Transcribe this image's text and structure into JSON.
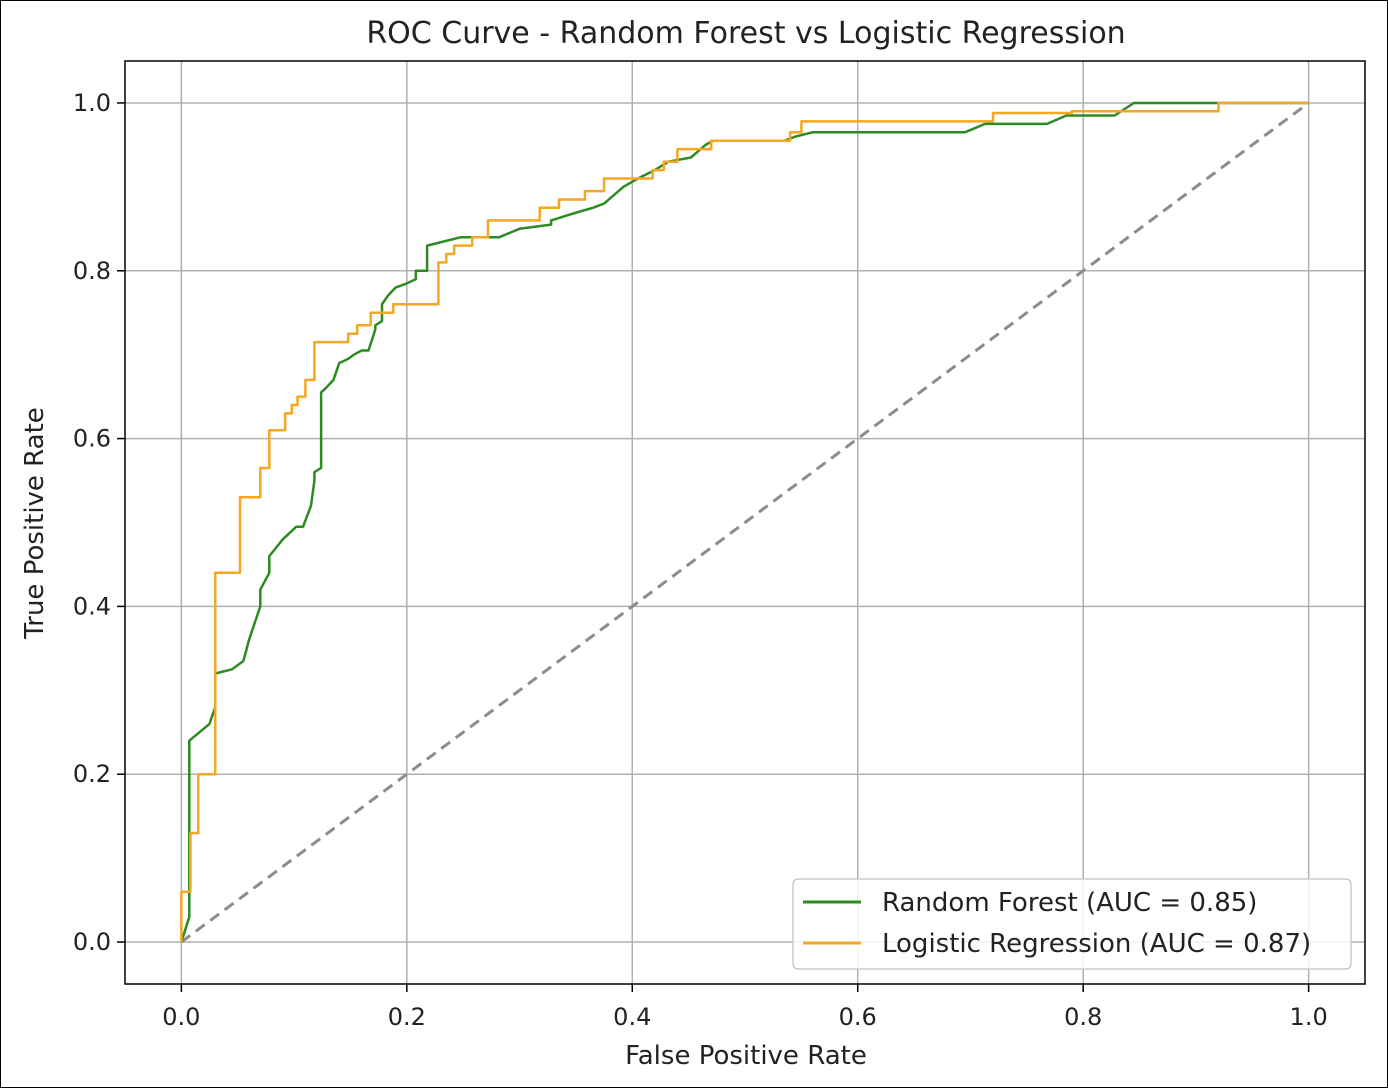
{
  "chart_data": {
    "type": "line",
    "title": "ROC Curve - Random Forest vs Logistic Regression",
    "xlabel": "False Positive Rate",
    "ylabel": "True Positive Rate",
    "xlim": [
      -0.05,
      1.05
    ],
    "ylim": [
      -0.05,
      1.05
    ],
    "xticks": [
      "0.0",
      "0.2",
      "0.4",
      "0.6",
      "0.8",
      "1.0"
    ],
    "yticks": [
      "0.0",
      "0.2",
      "0.4",
      "0.6",
      "0.8",
      "1.0"
    ],
    "grid": true,
    "legend_position": "bottom-right",
    "diagonal": {
      "x": [
        0,
        1
      ],
      "y": [
        0,
        1
      ],
      "color": "#8c8c8c",
      "style": "dashed"
    },
    "series": [
      {
        "name": "Random Forest (AUC = 0.85)",
        "color": "#2e8b22",
        "x": [
          0.0,
          0.007,
          0.007,
          0.025,
          0.03,
          0.03,
          0.045,
          0.055,
          0.06,
          0.065,
          0.07,
          0.07,
          0.078,
          0.078,
          0.09,
          0.102,
          0.108,
          0.115,
          0.118,
          0.118,
          0.124,
          0.124,
          0.128,
          0.135,
          0.14,
          0.148,
          0.153,
          0.16,
          0.166,
          0.172,
          0.172,
          0.178,
          0.178,
          0.183,
          0.19,
          0.2,
          0.208,
          0.208,
          0.218,
          0.218,
          0.248,
          0.268,
          0.282,
          0.3,
          0.328,
          0.328,
          0.34,
          0.352,
          0.365,
          0.375,
          0.392,
          0.405,
          0.42,
          0.432,
          0.452,
          0.465,
          0.472,
          0.535,
          0.545,
          0.56,
          0.635,
          0.695,
          0.713,
          0.735,
          0.768,
          0.785,
          0.828,
          0.845,
          0.87,
          1.0
        ],
        "y": [
          0.0,
          0.03,
          0.24,
          0.26,
          0.28,
          0.32,
          0.325,
          0.335,
          0.36,
          0.38,
          0.4,
          0.42,
          0.44,
          0.46,
          0.48,
          0.495,
          0.495,
          0.52,
          0.55,
          0.56,
          0.565,
          0.655,
          0.66,
          0.67,
          0.69,
          0.695,
          0.7,
          0.705,
          0.705,
          0.73,
          0.735,
          0.74,
          0.76,
          0.77,
          0.78,
          0.785,
          0.79,
          0.8,
          0.8,
          0.83,
          0.84,
          0.84,
          0.84,
          0.85,
          0.855,
          0.86,
          0.865,
          0.87,
          0.875,
          0.88,
          0.9,
          0.91,
          0.92,
          0.93,
          0.935,
          0.95,
          0.955,
          0.955,
          0.96,
          0.965,
          0.965,
          0.965,
          0.975,
          0.975,
          0.975,
          0.985,
          0.985,
          1.0,
          1.0,
          1.0
        ]
      },
      {
        "name": "Logistic Regression (AUC = 0.87)",
        "color": "#f5a623",
        "x": [
          0.0,
          0.0,
          0.008,
          0.008,
          0.015,
          0.015,
          0.03,
          0.03,
          0.052,
          0.052,
          0.07,
          0.07,
          0.078,
          0.078,
          0.092,
          0.092,
          0.098,
          0.098,
          0.103,
          0.103,
          0.11,
          0.11,
          0.118,
          0.118,
          0.148,
          0.148,
          0.156,
          0.156,
          0.168,
          0.168,
          0.188,
          0.188,
          0.228,
          0.228,
          0.235,
          0.235,
          0.242,
          0.242,
          0.258,
          0.258,
          0.272,
          0.272,
          0.318,
          0.318,
          0.335,
          0.335,
          0.358,
          0.358,
          0.375,
          0.375,
          0.418,
          0.418,
          0.428,
          0.428,
          0.44,
          0.44,
          0.47,
          0.47,
          0.54,
          0.54,
          0.55,
          0.55,
          0.72,
          0.72,
          0.79,
          0.79,
          0.92,
          0.92,
          1.0
        ],
        "y": [
          0.0,
          0.06,
          0.06,
          0.13,
          0.13,
          0.2,
          0.2,
          0.44,
          0.44,
          0.53,
          0.53,
          0.565,
          0.565,
          0.61,
          0.61,
          0.63,
          0.63,
          0.64,
          0.64,
          0.65,
          0.65,
          0.67,
          0.67,
          0.715,
          0.715,
          0.725,
          0.725,
          0.735,
          0.735,
          0.75,
          0.75,
          0.76,
          0.76,
          0.81,
          0.81,
          0.82,
          0.82,
          0.83,
          0.83,
          0.84,
          0.84,
          0.86,
          0.86,
          0.875,
          0.875,
          0.885,
          0.885,
          0.895,
          0.895,
          0.91,
          0.91,
          0.92,
          0.92,
          0.93,
          0.93,
          0.945,
          0.945,
          0.955,
          0.955,
          0.965,
          0.965,
          0.978,
          0.978,
          0.988,
          0.988,
          0.99,
          0.99,
          1.0,
          1.0
        ]
      }
    ]
  }
}
